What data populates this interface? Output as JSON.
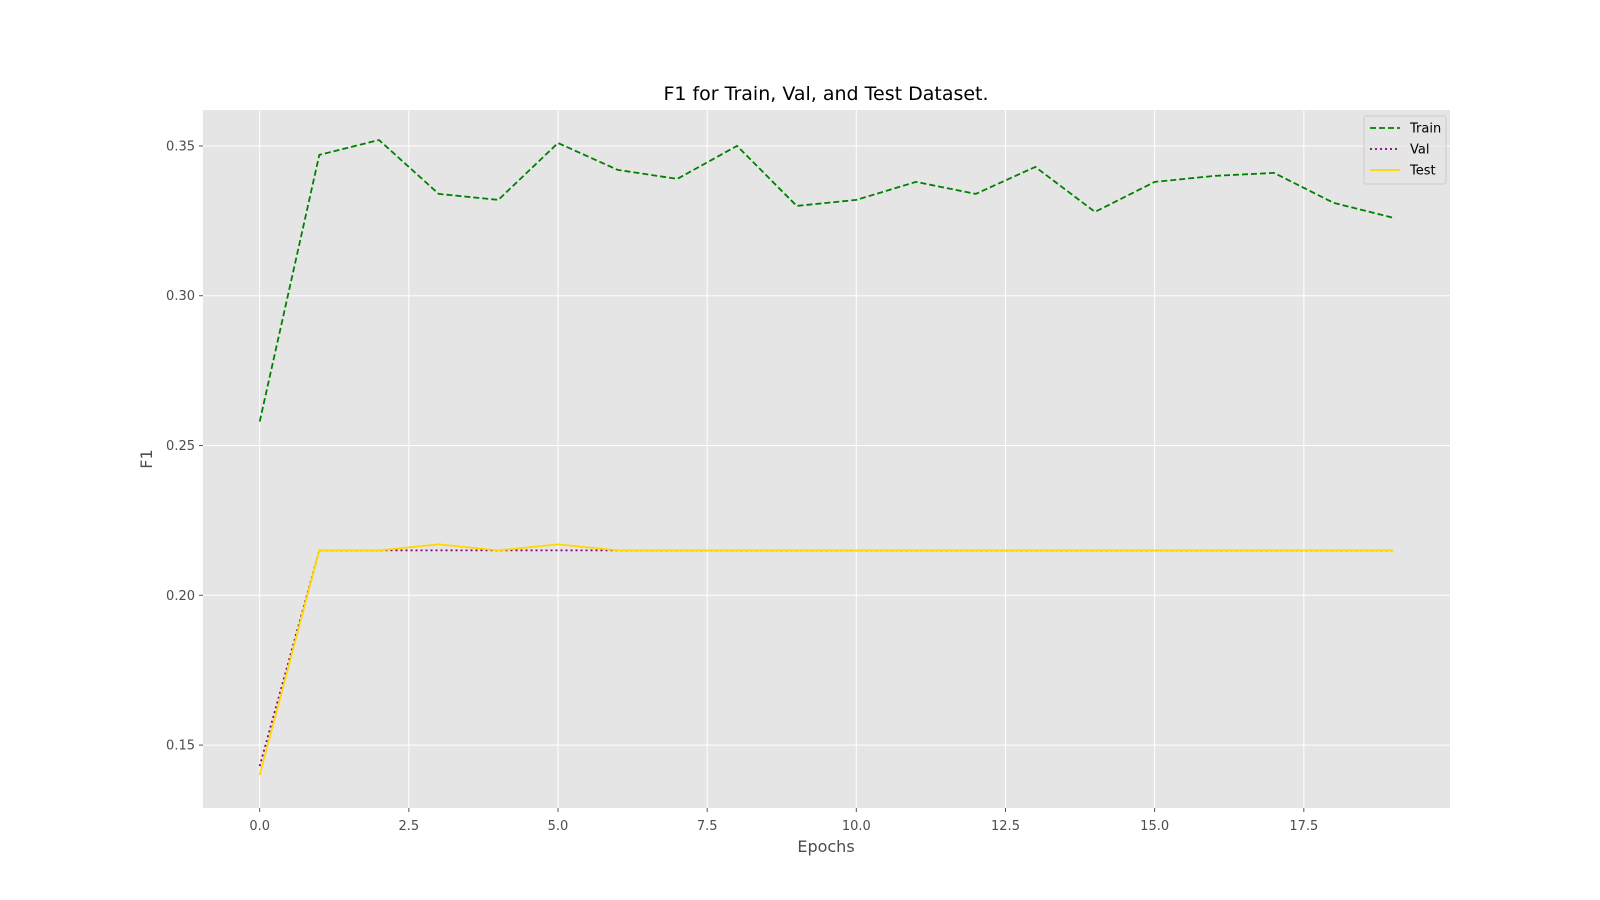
{
  "chart_data": {
    "type": "line",
    "title": "F1 for Train, Val, and Test Dataset.",
    "xlabel": "Epochs",
    "ylabel": "F1",
    "xlim": [
      -0.95,
      19.95
    ],
    "ylim": [
      0.129,
      0.362
    ],
    "xticks": [
      0.0,
      2.5,
      5.0,
      7.5,
      10.0,
      12.5,
      15.0,
      17.5
    ],
    "xtick_labels": [
      "0.0",
      "2.5",
      "5.0",
      "7.5",
      "10.0",
      "12.5",
      "15.0",
      "17.5"
    ],
    "yticks": [
      0.15,
      0.2,
      0.25,
      0.3,
      0.35
    ],
    "ytick_labels": [
      "0.15",
      "0.20",
      "0.25",
      "0.30",
      "0.35"
    ],
    "grid": true,
    "legend_position": "top-right",
    "x": [
      0,
      1,
      2,
      3,
      4,
      5,
      6,
      7,
      8,
      9,
      10,
      11,
      12,
      13,
      14,
      15,
      16,
      17,
      18,
      19
    ],
    "series": [
      {
        "name": "Train",
        "color": "#008000",
        "style": "dashed",
        "values": [
          0.258,
          0.347,
          0.352,
          0.334,
          0.332,
          0.351,
          0.342,
          0.339,
          0.35,
          0.33,
          0.332,
          0.338,
          0.334,
          0.343,
          0.328,
          0.338,
          0.34,
          0.341,
          0.331,
          0.326
        ]
      },
      {
        "name": "Val",
        "color": "#800080",
        "style": "dotted",
        "values": [
          0.143,
          0.215,
          0.215,
          0.215,
          0.215,
          0.215,
          0.215,
          0.215,
          0.215,
          0.215,
          0.215,
          0.215,
          0.215,
          0.215,
          0.215,
          0.215,
          0.215,
          0.215,
          0.215,
          0.215
        ]
      },
      {
        "name": "Test",
        "color": "#FFD700",
        "style": "solid",
        "values": [
          0.14,
          0.215,
          0.215,
          0.217,
          0.215,
          0.217,
          0.215,
          0.215,
          0.215,
          0.215,
          0.215,
          0.215,
          0.215,
          0.215,
          0.215,
          0.215,
          0.215,
          0.215,
          0.215,
          0.215
        ]
      }
    ]
  }
}
